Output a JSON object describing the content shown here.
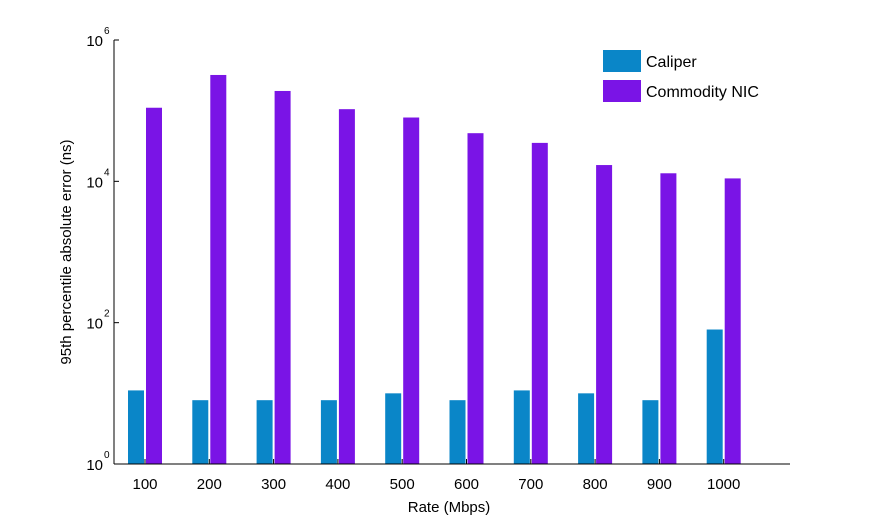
{
  "chart_data": {
    "type": "bar",
    "title": "",
    "xlabel": "Rate (Mbps)",
    "ylabel": "95th percentile absolute error (ns)",
    "yscale": "log",
    "ylim": [
      1,
      1000000
    ],
    "ytick_base": "10",
    "yticks": [
      {
        "value": 1,
        "exponent": "0"
      },
      {
        "value": 100,
        "exponent": "2"
      },
      {
        "value": 10000,
        "exponent": "4"
      },
      {
        "value": 1000000,
        "exponent": "6"
      }
    ],
    "categories": [
      "100",
      "200",
      "300",
      "400",
      "500",
      "600",
      "700",
      "800",
      "900",
      "1000"
    ],
    "series": [
      {
        "name": "Caliper",
        "color": "#0a86c8",
        "values": [
          11,
          8,
          8,
          8,
          10,
          8,
          11,
          10,
          8,
          80
        ]
      },
      {
        "name": "Commodity NIC",
        "color": "#7a14e6",
        "values": [
          110000,
          320000,
          190000,
          105000,
          80000,
          48000,
          35000,
          17000,
          13000,
          11000
        ]
      }
    ],
    "legend_position": "top-right",
    "grid": false
  }
}
